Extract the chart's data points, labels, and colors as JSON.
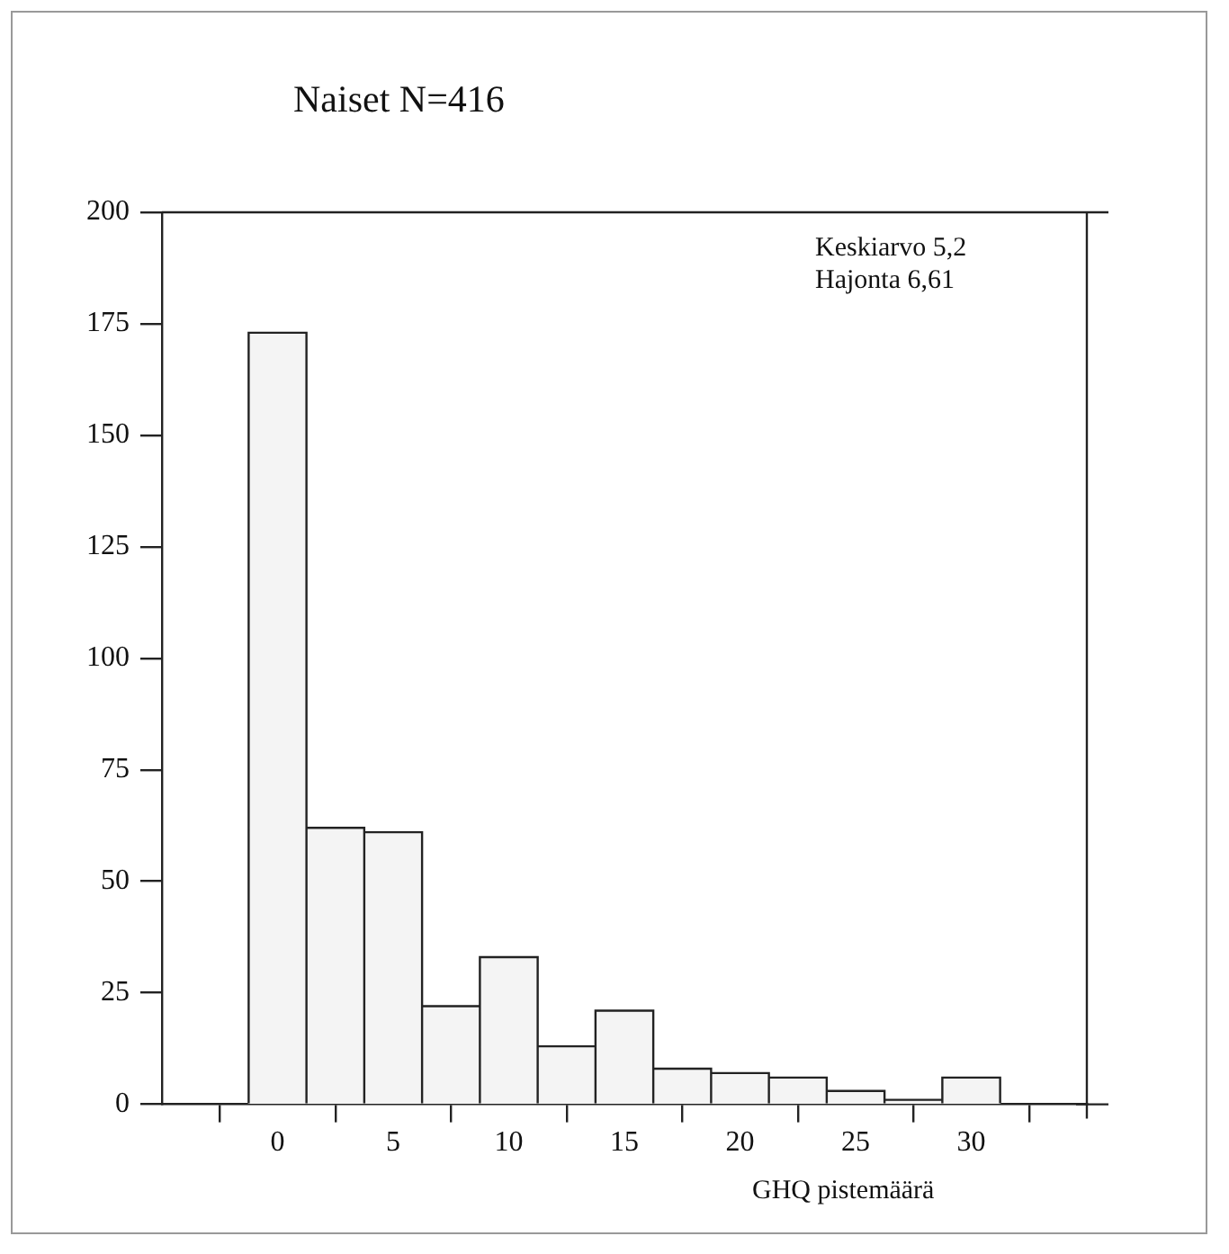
{
  "chart_data": {
    "type": "histogram",
    "title": "Naiset N=416",
    "xlabel": "GHQ pistemäärä",
    "annotations": [
      "Keskiarvo 5,2",
      "Hajonta 6,61"
    ],
    "bins": [
      -1.25,
      1.25,
      3.75,
      6.25,
      8.75,
      11.25,
      13.75,
      16.25,
      18.75,
      21.25,
      23.75,
      26.25,
      28.75,
      31.25
    ],
    "values": [
      173,
      62,
      61,
      22,
      33,
      13,
      21,
      8,
      7,
      6,
      3,
      1,
      6
    ],
    "color": "#f4f4f4",
    "xlim": [
      -5,
      35
    ],
    "xticks": [
      0,
      5,
      10,
      15,
      20,
      25,
      30,
      {
        "value": 35,
        "label": null
      }
    ],
    "ylim": [
      0,
      200
    ],
    "yticks": [
      0,
      25,
      50,
      75,
      100,
      125,
      150,
      175,
      200
    ],
    "grid": false,
    "legend": false
  }
}
